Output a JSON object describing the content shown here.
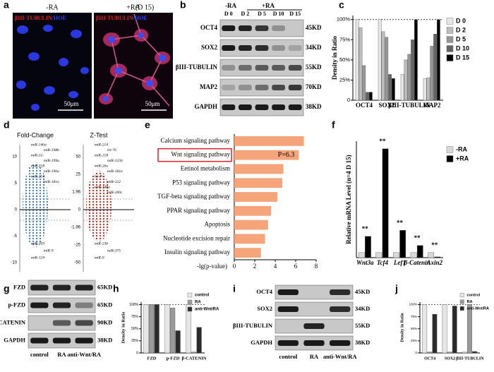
{
  "chart_data": [
    {
      "type": "bar",
      "ylabel": "Density in Ratio",
      "categories": [
        "OCT4",
        "SOX2",
        "βIII-TUBULIN",
        "MAP2"
      ],
      "series": [
        {
          "name": "D 0",
          "color": "#e6e6e6",
          "values": [
            100,
            100,
            32,
            27
          ]
        },
        {
          "name": "D 2",
          "color": "#bdbdbd",
          "values": [
            90,
            85,
            50,
            28
          ]
        },
        {
          "name": "D 5",
          "color": "#969696",
          "values": [
            43,
            78,
            57,
            67
          ]
        },
        {
          "name": "D 10",
          "color": "#636363",
          "values": [
            10,
            32,
            75,
            82
          ]
        },
        {
          "name": "D 15",
          "color": "#000000",
          "values": [
            10,
            27,
            100,
            100
          ]
        }
      ],
      "ylim": [
        0,
        105
      ],
      "yticks": [
        {
          "value": 0,
          "label": "0"
        },
        {
          "value": 25,
          "label": "25%"
        },
        {
          "value": 50,
          "label": "50%"
        },
        {
          "value": 75,
          "label": "75%"
        },
        {
          "value": 100,
          "label": "100%"
        }
      ]
    },
    {
      "type": "barh",
      "xlabel": "-lg(p-value)",
      "color": "#f6a57a",
      "annotation": "P=6.3",
      "categories": [
        "Calcium signaling pathway",
        "Wnt signaling pathway",
        "Eetinol metabolism",
        "P53 signaling pathway",
        "TGF-beta signaling pathway",
        "PPAR signaling pathway",
        "Apoptosis",
        "Nucleotide excision repair",
        "Insulin signaling pathway"
      ],
      "values": [
        6.8,
        6.3,
        4.8,
        4.7,
        4.2,
        3.6,
        3.3,
        3.0,
        2.6
      ],
      "xlim": [
        0,
        8
      ],
      "xticks": [
        0,
        2,
        4,
        6,
        8
      ]
    },
    {
      "type": "bar",
      "ylabel": "Relative mRNA Level (n=4 D 15)",
      "categories": [
        "Wnt3a",
        "Tcf4",
        "Lef1",
        "β-Catenin",
        "Axin2"
      ],
      "series": [
        {
          "name": "-RA",
          "color": "#d9d9d9",
          "values": [
            1,
            1,
            1,
            1,
            1
          ]
        },
        {
          "name": "+RA",
          "color": "#000000",
          "values": [
            4.2,
            21.5,
            5.4,
            2.4,
            0.15
          ]
        }
      ],
      "annotations": [
        "**",
        "**",
        "**",
        "**",
        "**"
      ],
      "ylim": [
        0,
        23
      ]
    },
    {
      "type": "bar",
      "ylabel": "Density in Ratio",
      "categories": [
        "FZD",
        "p-FZD",
        "β-CATENIN"
      ],
      "series": [
        {
          "name": "control",
          "color": "#e6e6e6",
          "values": [
            100,
            100,
            100
          ]
        },
        {
          "name": "RA",
          "color": "#9a9a9a",
          "values": [
            100,
            93,
            2
          ]
        },
        {
          "name": "anti-Wnt/RA",
          "color": "#2b2b2b",
          "values": [
            100,
            46,
            53
          ]
        }
      ],
      "ylim": [
        0,
        105
      ],
      "yticks": [
        {
          "value": 0,
          "label": "0"
        },
        {
          "value": 25,
          "label": "25%"
        },
        {
          "value": 50,
          "label": "50%"
        },
        {
          "value": 75,
          "label": "75%"
        },
        {
          "value": 100,
          "label": "100%"
        }
      ]
    },
    {
      "type": "bar",
      "ylabel": "Density in Ratio",
      "categories": [
        "OCT4",
        "SOX2",
        "βIII-TUBULIN"
      ],
      "series": [
        {
          "name": "control",
          "color": "#e6e6e6",
          "values": [
            100,
            100,
            2
          ]
        },
        {
          "name": "RA",
          "color": "#9a9a9a",
          "values": [
            2,
            2,
            100
          ]
        },
        {
          "name": "anti-Wnt/RA",
          "color": "#2b2b2b",
          "values": [
            80,
            97,
            3
          ]
        }
      ],
      "ylim": [
        0,
        105
      ],
      "yticks": [
        {
          "value": 0,
          "label": "0"
        },
        {
          "value": 25,
          "label": "25%"
        },
        {
          "value": 50,
          "label": "50%"
        },
        {
          "value": 75,
          "label": "75%"
        },
        {
          "value": 100,
          "label": "100%"
        }
      ]
    }
  ],
  "figure": {
    "panel_labels": [
      "a",
      "b",
      "c",
      "d",
      "e",
      "f",
      "g",
      "h",
      "i",
      "j"
    ],
    "a": {
      "day": "(D 15)",
      "images": [
        {
          "label": "-RA",
          "stain": [
            "βIII-TUBULIN",
            "/HOE"
          ],
          "scale": "50μm"
        },
        {
          "label": "+RA",
          "stain": [
            "βIII-TUBULIN",
            "/HOE"
          ],
          "scale": "50μm"
        }
      ]
    },
    "b": {
      "groups": [
        "-RA",
        "+RA"
      ],
      "lanes": [
        "D 0",
        "D 2",
        "D 5",
        "D 10",
        "D 15"
      ],
      "rows": [
        {
          "name": "OCT4",
          "size": "45KD"
        },
        {
          "name": "SOX2",
          "size": "34KD"
        },
        {
          "name": "βIII-TUBULIN",
          "size": "55KD"
        },
        {
          "name": "MAP2",
          "size": "70KD"
        },
        {
          "name": "GAPDH",
          "size": "38KD"
        }
      ]
    },
    "d": {
      "plots": [
        {
          "title": "Fold-Change",
          "ticks": [
            "10",
            "5",
            "0",
            "-5",
            "-10"
          ],
          "labels": [
            "miR-146a",
            "miR-198b",
            "miR-31-",
            "miR-199a",
            "miR-218",
            "miR-196a",
            "miR-214",
            "miR-181a",
            "miR-203",
            "miR-9",
            "miR-124"
          ]
        },
        {
          "title": "Z-Test",
          "ticks": [
            "50",
            "25",
            "1.96",
            "0",
            "-1.96",
            "-25",
            "-50"
          ],
          "labels": [
            "miR-214",
            "let-7b",
            "miR-218",
            "miR-125b",
            "miR-26a",
            "miR-181a",
            "let-7c",
            "miR-222",
            "miR-146a",
            "miR-200c",
            "miR-23b",
            "miR-375",
            "miR-9"
          ]
        }
      ]
    },
    "g": {
      "lanes": [
        "control",
        "RA",
        "anti-Wnt/RA"
      ],
      "rows": [
        {
          "name": "FZD",
          "size": "65KD"
        },
        {
          "name": "p-FZD",
          "size": "65KD"
        },
        {
          "name": "β-CATENIN",
          "size": "90KD"
        },
        {
          "name": "GAPDH",
          "size": "38KD"
        }
      ]
    },
    "i": {
      "lanes": [
        "control",
        "RA",
        "anti-Wnt/RA"
      ],
      "rows": [
        {
          "name": "OCT4",
          "size": "45KD"
        },
        {
          "name": "SOX2",
          "size": "34KD"
        },
        {
          "name": "βIII-TUBULIN",
          "size": "55KD"
        },
        {
          "name": "GAPDH",
          "size": "38KD"
        }
      ]
    }
  }
}
